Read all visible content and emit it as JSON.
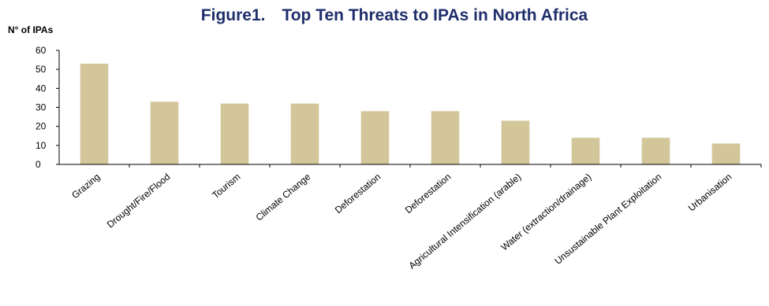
{
  "chart_data": {
    "type": "bar",
    "title": "Figure1. Top Ten Threats to IPAs in North Africa",
    "xlabel": "",
    "ylabel": "N° of IPAs",
    "ylim": [
      0,
      60
    ],
    "yticks": [
      0,
      10,
      20,
      30,
      40,
      50,
      60
    ],
    "grid": false,
    "legend": "none",
    "bar_color": "#d3c69b",
    "categories": [
      "Grazing",
      "Drought/Fire/Flood",
      "Tourism",
      "Climate Change",
      "Deforestation",
      "Deforestation",
      "Agricultural Intensification (arable)",
      "Water (extraction/drainage)",
      "Unsustainable Plant Exploitation",
      "Urbanisation"
    ],
    "values": [
      53,
      33,
      32,
      32,
      28,
      28,
      23,
      14,
      14,
      11
    ]
  }
}
